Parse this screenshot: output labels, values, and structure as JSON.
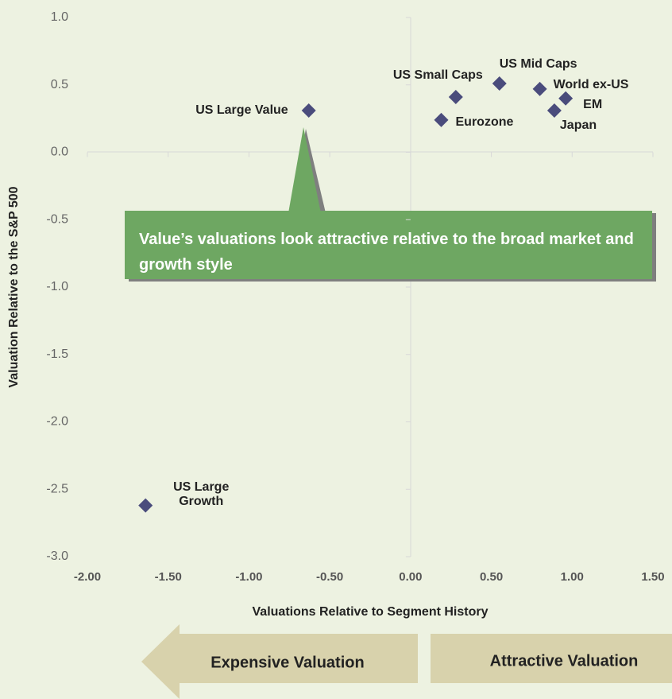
{
  "chart_data": {
    "type": "scatter",
    "x_label": "Valuations Relative to Segment History",
    "y_label": "Valuation Relative to the S&P 500",
    "labels": [
      "US Large Value",
      "US Small Caps",
      "US Mid Caps",
      "World ex-US",
      "EM",
      "Japan",
      "Eurozone",
      "US Large Growth"
    ],
    "x": [
      -0.63,
      0.28,
      0.55,
      0.8,
      0.96,
      0.89,
      0.19,
      -1.64
    ],
    "values": [
      0.31,
      0.41,
      0.51,
      0.47,
      0.4,
      0.31,
      0.24,
      -2.62
    ],
    "color": "#4a4c7c",
    "xlim": [
      -2,
      1.5
    ],
    "ylim": [
      -3,
      1
    ],
    "xticks": [
      {
        "value": -2,
        "label": "-2.00"
      },
      {
        "value": -1.5,
        "label": "-1.50"
      },
      {
        "value": -1,
        "label": "-1.00"
      },
      {
        "value": -0.5,
        "label": "-0.50"
      },
      {
        "value": 0,
        "label": "0.00"
      },
      {
        "value": 0.5,
        "label": "0.50"
      },
      {
        "value": 1,
        "label": "1.00"
      },
      {
        "value": 1.5,
        "label": "1.50"
      }
    ],
    "yticks": [
      {
        "value": 1,
        "label": "1.0"
      },
      {
        "value": 0.5,
        "label": "0.5"
      },
      {
        "value": 0,
        "label": "0.0"
      },
      {
        "value": -0.5,
        "label": "-0.5"
      },
      {
        "value": -1,
        "label": "-1.0"
      },
      {
        "value": -1.5,
        "label": "-1.5"
      },
      {
        "value": -2,
        "label": "-2.0"
      },
      {
        "value": -2.5,
        "label": "-2.5"
      },
      {
        "value": -3,
        "label": "-3.0"
      }
    ],
    "annotation": "Value’s valuations look attractive relative to the broad market and growth style",
    "left_arrow": "Expensive Valuation",
    "right_arrow": "Attractive Valuation"
  }
}
